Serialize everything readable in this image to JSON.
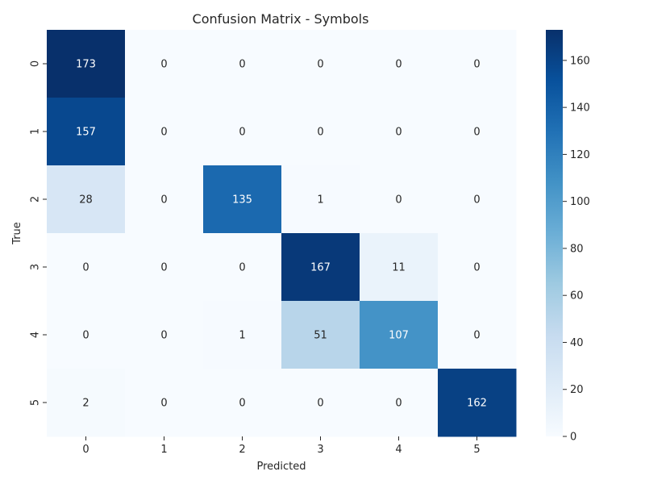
{
  "chart_data": {
    "type": "heatmap",
    "title": "Confusion Matrix - Symbols",
    "xlabel": "Predicted",
    "ylabel": "True",
    "x_categories": [
      "0",
      "1",
      "2",
      "3",
      "4",
      "5"
    ],
    "y_categories": [
      "0",
      "1",
      "2",
      "3",
      "4",
      "5"
    ],
    "values": [
      [
        173,
        0,
        0,
        0,
        0,
        0
      ],
      [
        157,
        0,
        0,
        0,
        0,
        0
      ],
      [
        28,
        0,
        135,
        1,
        0,
        0
      ],
      [
        0,
        0,
        0,
        167,
        11,
        0
      ],
      [
        0,
        0,
        1,
        51,
        107,
        0
      ],
      [
        2,
        0,
        0,
        0,
        0,
        162
      ]
    ],
    "colormap": "Blues",
    "vmin": 0,
    "vmax": 173,
    "colorbar_ticks": [
      "0",
      "20",
      "40",
      "60",
      "80",
      "100",
      "120",
      "140",
      "160"
    ]
  }
}
